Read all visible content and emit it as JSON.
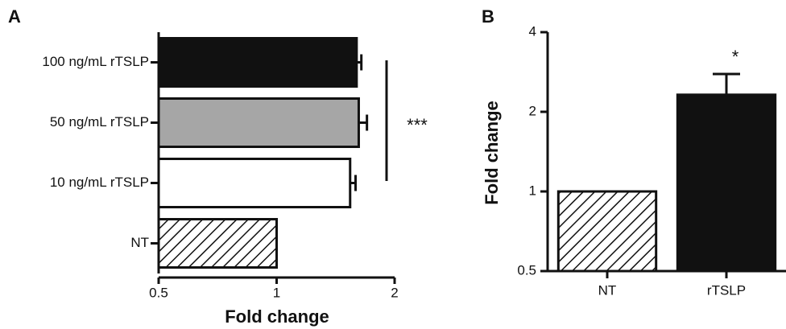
{
  "chart_data": [
    {
      "type": "bar",
      "orientation": "horizontal",
      "panel": "A",
      "xlabel": "Fold change",
      "categories": [
        "100 ng/mL rTSLP",
        "50 ng/mL rTSLP",
        "10 ng/mL rTSLP",
        "NT"
      ],
      "values": [
        1.6,
        1.62,
        1.54,
        1
      ],
      "errors": [
        0.045,
        0.08,
        0.05,
        null
      ],
      "colors": [
        "#111111",
        "#a6a6a6",
        "#ffffff",
        "#ffffff"
      ],
      "patterns": [
        "solid",
        "solid",
        "solid",
        "hatch"
      ],
      "xscale": "log",
      "log_base": 2,
      "xlim": [
        0.5,
        2
      ],
      "xticks": [
        0.5,
        1,
        2
      ],
      "annotation": "***"
    },
    {
      "type": "bar",
      "orientation": "vertical",
      "panel": "B",
      "ylabel": "Fold change",
      "categories": [
        "NT",
        "rTSLP"
      ],
      "values": [
        1,
        2.32
      ],
      "errors": [
        null,
        0.46
      ],
      "colors": [
        "#ffffff",
        "#111111"
      ],
      "patterns": [
        "hatch",
        "solid"
      ],
      "yscale": "log",
      "log_base": 2,
      "ylim": [
        0.5,
        4
      ],
      "yticks": [
        0.5,
        1,
        2,
        4
      ],
      "annotation": "*"
    }
  ]
}
